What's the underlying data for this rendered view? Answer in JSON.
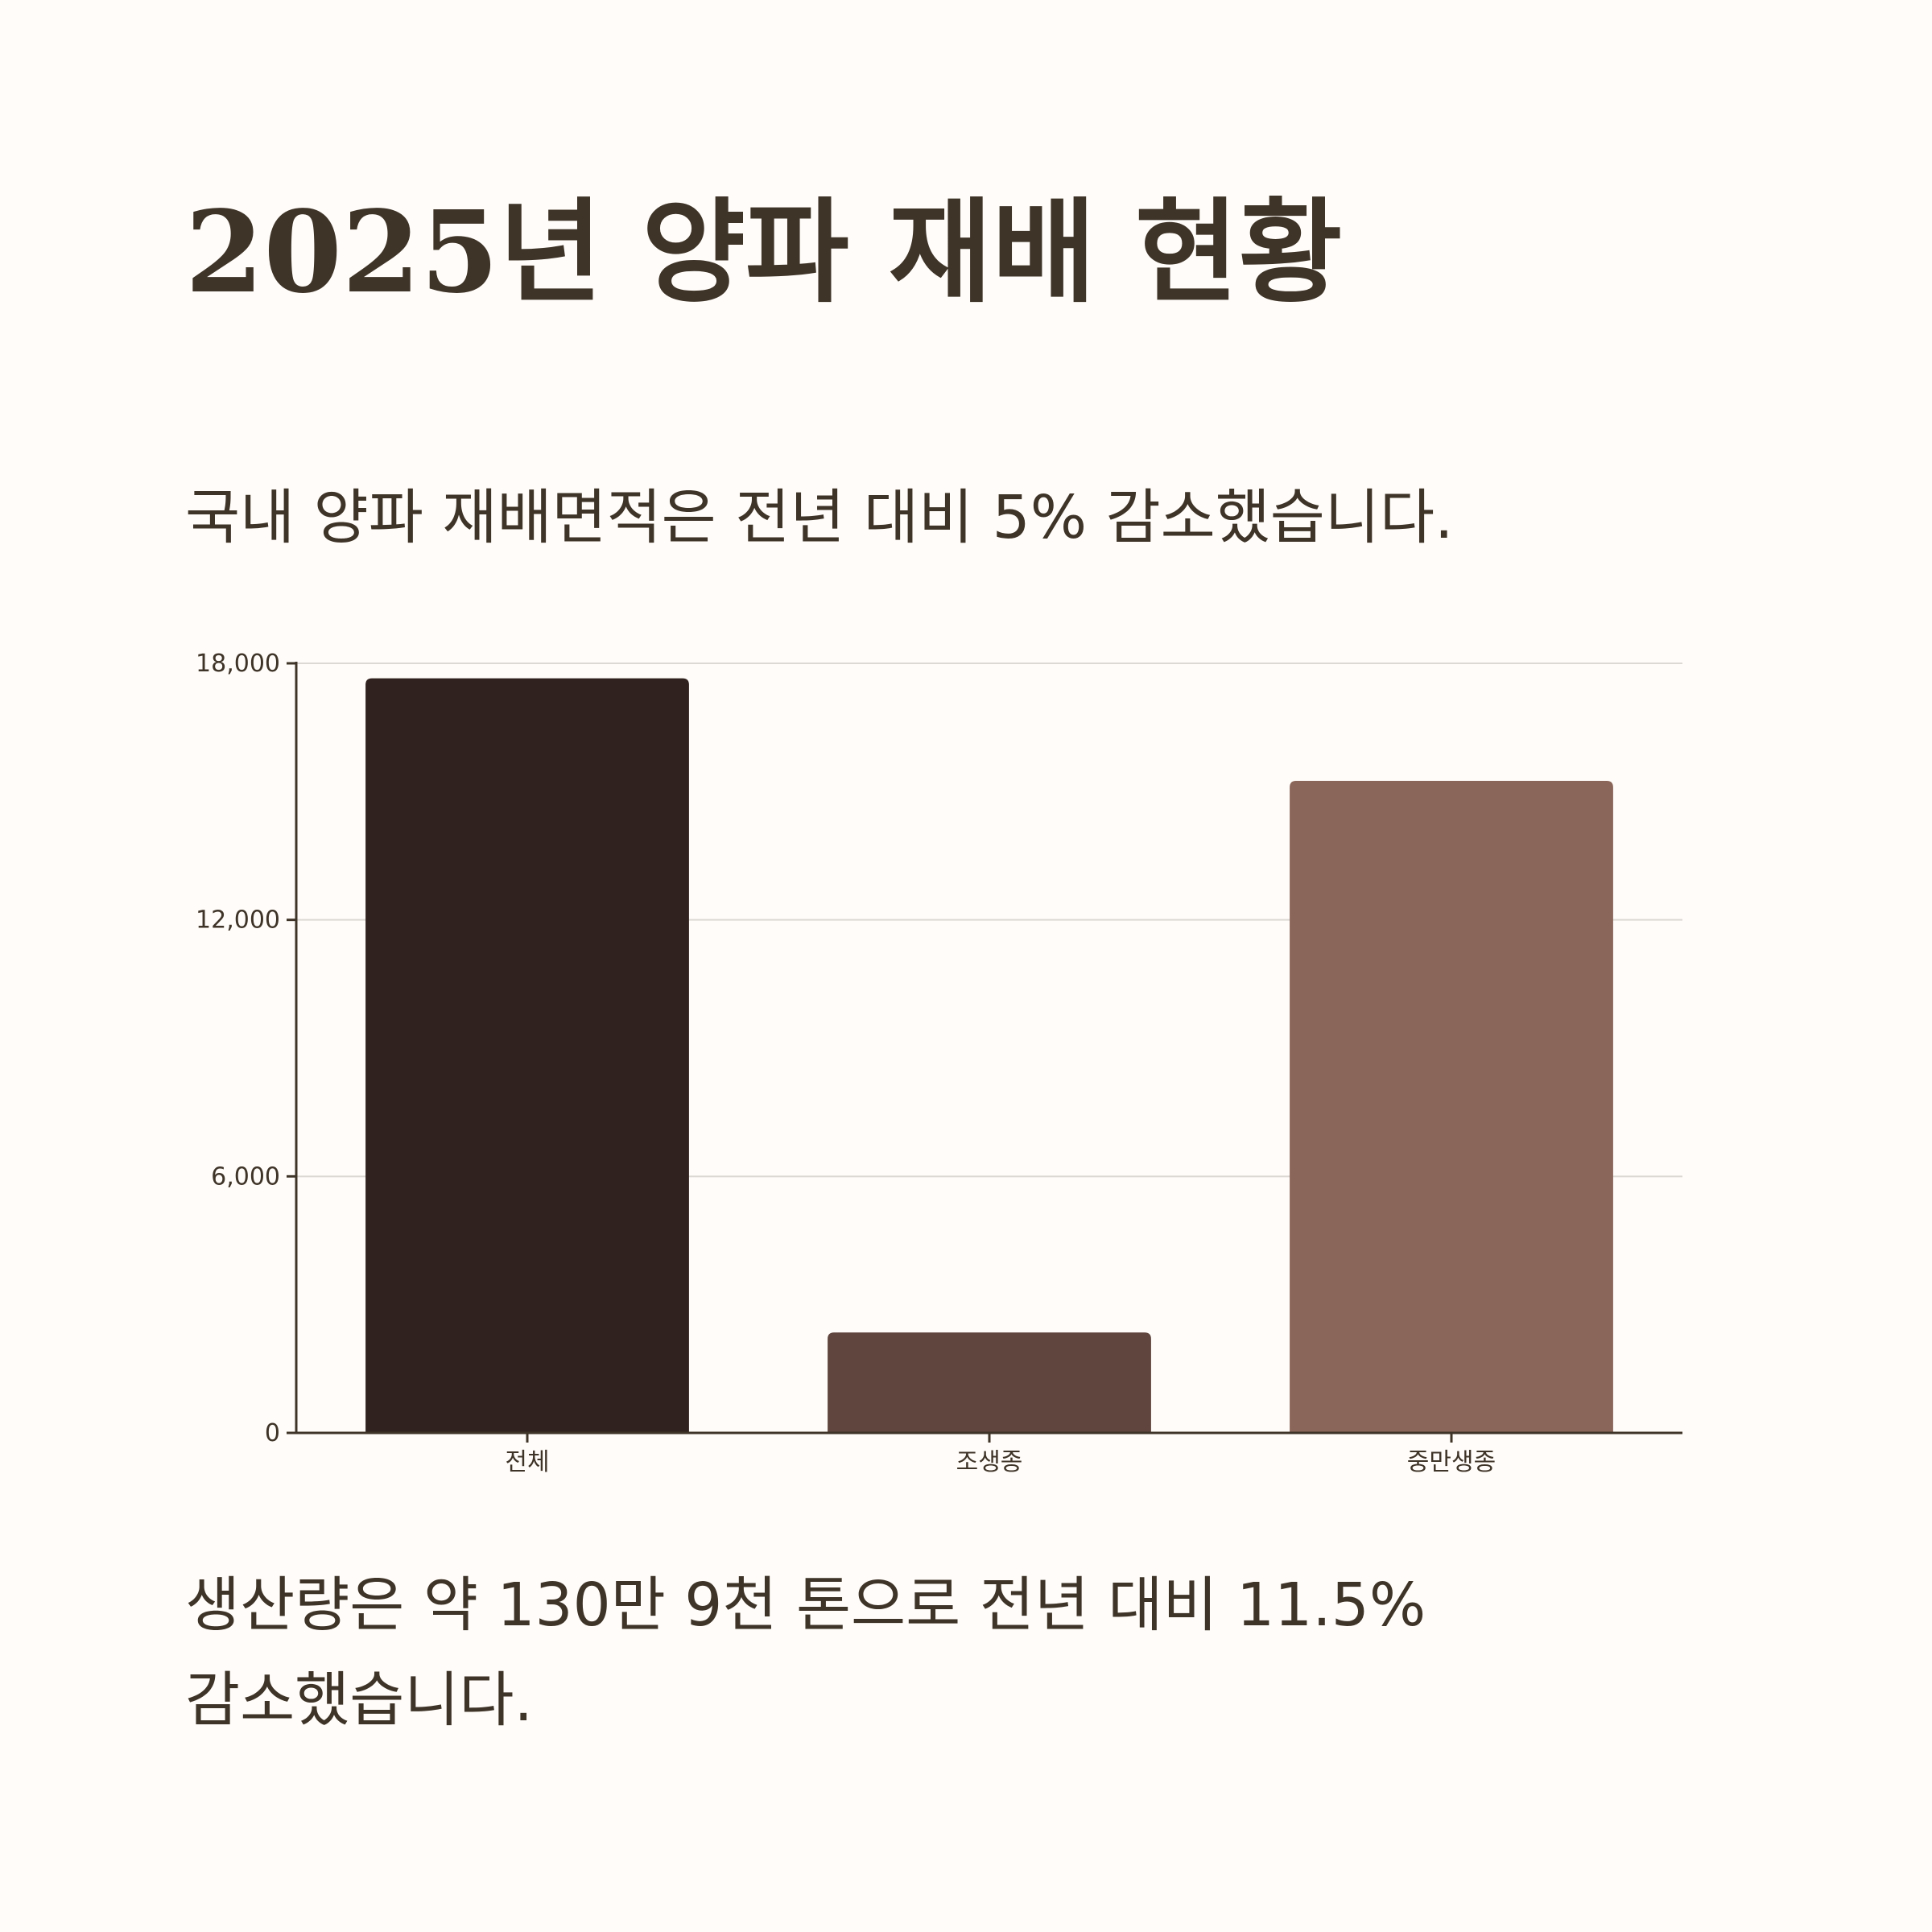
{
  "title": "2025년 양파 재배 현황",
  "subtitle": "국내 양파 재배면적은 전년 대비 5% 감소했습니다.",
  "footer": "생산량은 약 130만 9천 톤으로 전년 대비 11.5% 감소했습니다.",
  "chart_data": {
    "type": "bar",
    "categories": [
      "전체",
      "조생종",
      "중만생종"
    ],
    "values": [
      17650,
      2350,
      15250
    ],
    "colors": [
      "#30221e",
      "#5f453e",
      "#8a6559"
    ],
    "ylim": [
      0,
      18000
    ],
    "yticks": [
      0,
      6000,
      12000,
      18000
    ],
    "ytick_labels": [
      "0",
      "6,000",
      "12,000",
      "18,000"
    ],
    "grid": true,
    "legend": "none"
  }
}
